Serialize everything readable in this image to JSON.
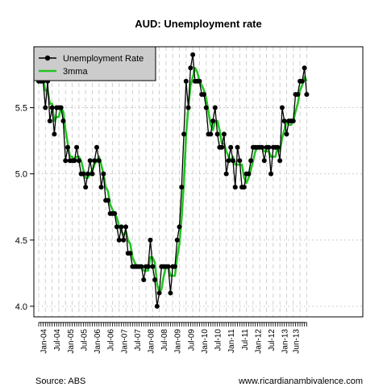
{
  "chart_data": {
    "type": "line",
    "title": "AUD: Unemployment rate",
    "xlabel": "",
    "ylabel": "",
    "ylim": [
      3.92,
      5.96
    ],
    "yticks": [
      "4.0",
      "4.5",
      "5.0",
      "5.5"
    ],
    "ytick_values": [
      4.0,
      4.5,
      5.0,
      5.5
    ],
    "grid": true,
    "legend_position": "top-left",
    "x_start": "2003-11",
    "xtick_labels": [
      "Jan-04",
      "Jul-04",
      "Jan-05",
      "Jul-05",
      "Jan-06",
      "Jul-06",
      "Jan-07",
      "Jul-07",
      "Jan-08",
      "Jul-08",
      "Jan-09",
      "Jul-09",
      "Jan-10",
      "Jul-10",
      "Jan-11",
      "Jul-11",
      "Jan-12",
      "Jul-12",
      "Jan-13",
      "Jun-13"
    ],
    "series": [
      {
        "name": "Unemployment Rate",
        "color": "#000000",
        "values": [
          5.7,
          5.7,
          5.7,
          5.5,
          5.7,
          5.4,
          5.5,
          5.3,
          5.5,
          5.5,
          5.5,
          5.4,
          5.1,
          5.2,
          5.1,
          5.1,
          5.1,
          5.2,
          5.1,
          5.0,
          5.0,
          4.9,
          5.0,
          5.1,
          5.0,
          5.1,
          5.2,
          5.1,
          4.9,
          5.0,
          4.8,
          4.8,
          4.7,
          4.7,
          4.7,
          4.6,
          4.5,
          4.6,
          4.5,
          4.6,
          4.4,
          4.4,
          4.3,
          4.3,
          4.3,
          4.3,
          4.3,
          4.2,
          4.3,
          4.3,
          4.5,
          4.3,
          4.2,
          4.0,
          4.1,
          4.3,
          4.3,
          4.3,
          4.3,
          4.1,
          4.3,
          4.3,
          4.5,
          4.6,
          4.9,
          5.3,
          5.7,
          5.5,
          5.8,
          5.9,
          5.7,
          5.7,
          5.7,
          5.6,
          5.6,
          5.5,
          5.3,
          5.3,
          5.4,
          5.5,
          5.3,
          5.2,
          5.2,
          5.3,
          5.0,
          5.1,
          5.2,
          5.1,
          4.9,
          5.2,
          5.1,
          4.9,
          4.9,
          5.0,
          5.0,
          5.1,
          5.2,
          5.2,
          5.2,
          5.2,
          5.2,
          5.1,
          5.2,
          5.2,
          5.0,
          5.2,
          5.2,
          5.2,
          5.1,
          5.5,
          5.4,
          5.3,
          5.4,
          5.4,
          5.4,
          5.6,
          5.6,
          5.7,
          5.7,
          5.8,
          5.6
        ]
      },
      {
        "name": "3mma",
        "color": "#22c422",
        "values": [
          5.7,
          5.7,
          5.7,
          5.63,
          5.63,
          5.53,
          5.53,
          5.4,
          5.43,
          5.43,
          5.5,
          5.47,
          5.33,
          5.23,
          5.13,
          5.13,
          5.1,
          5.13,
          5.13,
          5.1,
          5.03,
          4.97,
          4.97,
          5.0,
          5.03,
          5.07,
          5.1,
          5.13,
          5.07,
          5.0,
          4.9,
          4.87,
          4.77,
          4.73,
          4.7,
          4.67,
          4.6,
          4.57,
          4.53,
          4.57,
          4.5,
          4.47,
          4.37,
          4.33,
          4.3,
          4.3,
          4.3,
          4.27,
          4.27,
          4.27,
          4.37,
          4.37,
          4.33,
          4.17,
          4.1,
          4.13,
          4.23,
          4.3,
          4.3,
          4.23,
          4.23,
          4.23,
          4.37,
          4.47,
          4.67,
          4.93,
          5.3,
          5.5,
          5.67,
          5.73,
          5.8,
          5.77,
          5.7,
          5.67,
          5.63,
          5.57,
          5.47,
          5.37,
          5.33,
          5.4,
          5.4,
          5.33,
          5.23,
          5.23,
          5.17,
          5.13,
          5.1,
          5.13,
          5.07,
          5.07,
          5.07,
          5.07,
          4.97,
          4.93,
          4.97,
          5.03,
          5.1,
          5.17,
          5.2,
          5.2,
          5.2,
          5.17,
          5.17,
          5.17,
          5.13,
          5.13,
          5.13,
          5.2,
          5.17,
          5.27,
          5.33,
          5.4,
          5.37,
          5.37,
          5.4,
          5.47,
          5.53,
          5.63,
          5.67,
          5.73,
          5.7
        ]
      }
    ],
    "source_text": "Source: ABS",
    "website_text": "www.ricardianambivalence.com"
  }
}
